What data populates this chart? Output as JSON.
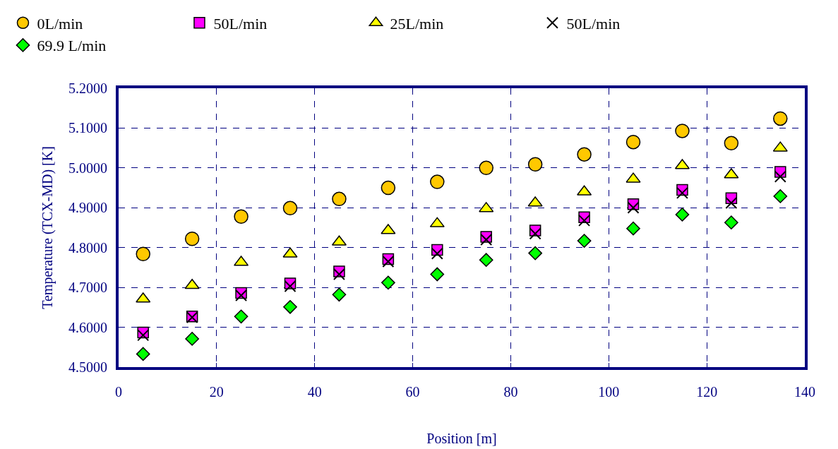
{
  "chart_data": {
    "type": "scatter",
    "xlabel": "Position [m]",
    "ylabel": "Temperature (TCX-MD) [K]",
    "x": [
      5,
      15,
      25,
      35,
      45,
      55,
      65,
      75,
      85,
      95,
      105,
      115,
      125,
      135
    ],
    "series": [
      {
        "name": "0L/min",
        "color": "#ffc800",
        "marker": "circle",
        "values": [
          4.784,
          4.822,
          4.878,
          4.899,
          4.922,
          4.95,
          4.965,
          5.0,
          5.009,
          5.034,
          5.065,
          5.093,
          5.062,
          5.124
        ]
      },
      {
        "name": "50L/min",
        "color": "#ff00ff",
        "marker": "square",
        "values": [
          4.587,
          4.627,
          4.686,
          4.71,
          4.74,
          4.771,
          4.794,
          4.827,
          4.843,
          4.876,
          4.909,
          4.945,
          4.924,
          4.99
        ]
      },
      {
        "name": "25L/min",
        "color": "#ffff00",
        "marker": "triangle",
        "values": [
          4.671,
          4.705,
          4.763,
          4.784,
          4.814,
          4.843,
          4.86,
          4.898,
          4.912,
          4.94,
          4.972,
          5.006,
          4.983,
          5.05
        ]
      },
      {
        "name": "50L/min",
        "color": "#000000",
        "marker": "cross",
        "values": [
          4.58,
          4.625,
          4.68,
          4.703,
          4.733,
          4.765,
          4.785,
          4.82,
          4.835,
          4.868,
          4.9,
          4.937,
          4.912,
          4.978
        ]
      },
      {
        "name": "69.9 L/min",
        "color": "#00ff00",
        "marker": "diamond",
        "values": [
          4.533,
          4.571,
          4.627,
          4.651,
          4.682,
          4.712,
          4.733,
          4.769,
          4.786,
          4.817,
          4.848,
          4.883,
          4.863,
          4.929
        ]
      }
    ],
    "xlim": [
      0,
      140
    ],
    "xticks": [
      0,
      20,
      40,
      60,
      80,
      100,
      120,
      140
    ],
    "ylim": [
      4.5,
      5.2
    ],
    "yticks": [
      {
        "value": 4.5,
        "label": "4.5000"
      },
      {
        "value": 4.6,
        "label": "4.6000"
      },
      {
        "value": 4.7,
        "label": "4.7000"
      },
      {
        "value": 4.8,
        "label": "4.8000"
      },
      {
        "value": 4.9,
        "label": "4.9000"
      },
      {
        "value": 5.0,
        "label": "5.0000"
      },
      {
        "value": 5.1,
        "label": "5.1000"
      },
      {
        "value": 5.2,
        "label": "5.2000"
      }
    ],
    "grid": true,
    "legend": "top"
  }
}
